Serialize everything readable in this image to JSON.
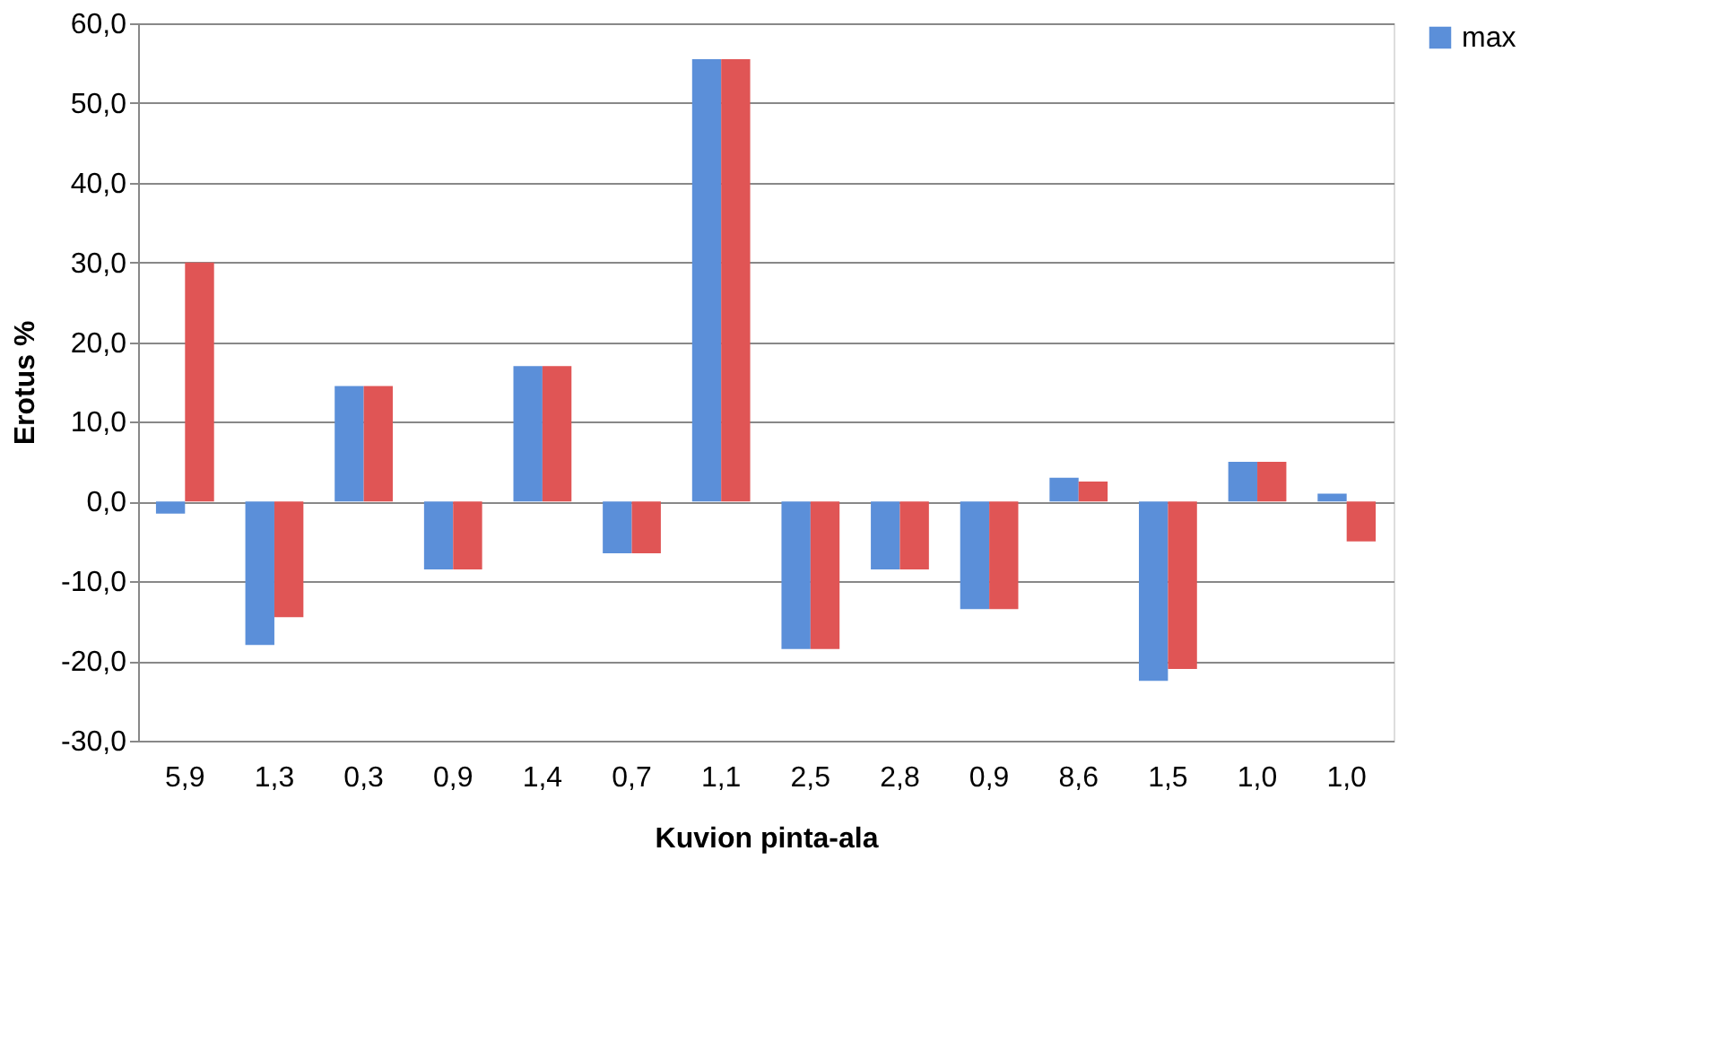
{
  "chart_data": {
    "type": "bar",
    "xlabel": "Kuvion pinta-ala",
    "ylabel": "Erotus %",
    "categories": [
      "5,9",
      "1,3",
      "0,3",
      "0,9",
      "1,4",
      "0,7",
      "1,1",
      "2,5",
      "2,8",
      "0,9",
      "8,6",
      "1,5",
      "1,0",
      "1,0"
    ],
    "series": [
      {
        "name": "max",
        "color": "#5b8fd9",
        "values": [
          -1.5,
          -18,
          14.5,
          -8.5,
          17,
          -6.5,
          55.5,
          -18.5,
          -8.5,
          -13.5,
          3,
          -22.5,
          5,
          1
        ]
      },
      {
        "color": "#e05555",
        "values": [
          30,
          -14.5,
          14.5,
          -8.5,
          17,
          -6.5,
          55.5,
          -18.5,
          -8.5,
          -13.5,
          2.5,
          -21,
          5,
          -5
        ]
      }
    ],
    "ylim": [
      -30,
      60
    ],
    "yticks": [
      {
        "value": -30,
        "label": "-30,0"
      },
      {
        "value": -20,
        "label": "-20,0"
      },
      {
        "value": -10,
        "label": "-10,0"
      },
      {
        "value": 0,
        "label": "0,0"
      },
      {
        "value": 10,
        "label": "10,0"
      },
      {
        "value": 20,
        "label": "20,0"
      },
      {
        "value": 30,
        "label": "30,0"
      },
      {
        "value": 40,
        "label": "40,0"
      },
      {
        "value": 50,
        "label": "50,0"
      },
      {
        "value": 60,
        "label": "60,0"
      }
    ],
    "grid": "y",
    "legend": "right"
  }
}
